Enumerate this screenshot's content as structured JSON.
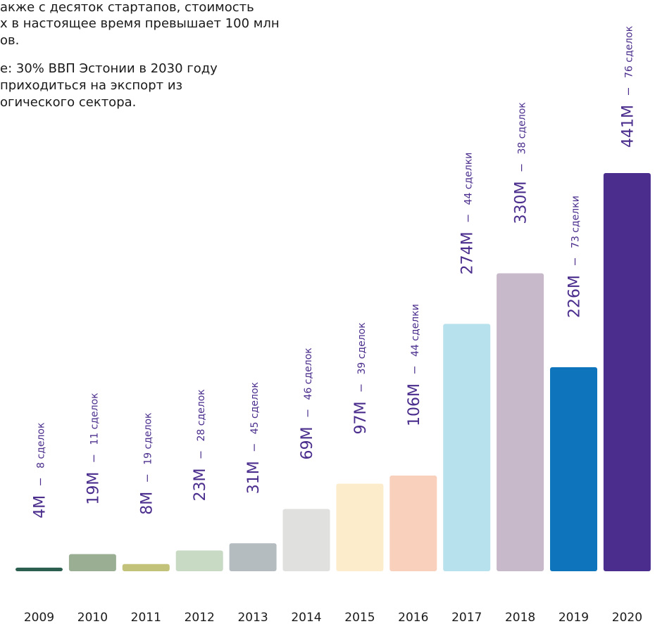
{
  "intro": [
    "акже с десяток стартапов, стоимость",
    "х в настоящее время превышает 100 млн",
    "ов.",
    "е: 30% ВВП Эстонии в 2030 году",
    "приходиться на экспорт из",
    "огического сектора."
  ],
  "chart_data": {
    "type": "bar",
    "categories": [
      "2009",
      "2010",
      "2011",
      "2012",
      "2013",
      "2014",
      "2015",
      "2016",
      "2017",
      "2018",
      "2019",
      "2020"
    ],
    "values": [
      4,
      19,
      8,
      23,
      31,
      69,
      97,
      106,
      274,
      330,
      226,
      441
    ],
    "value_labels": [
      "4M",
      "19M",
      "8M",
      "23M",
      "31M",
      "69M",
      "97M",
      "106M",
      "274M",
      "330M",
      "226M",
      "441M"
    ],
    "deal_labels": [
      "8 сделок",
      "11 сделок",
      "19 сделок",
      "28 сделок",
      "45 сделок",
      "46 сделок",
      "39 сделок",
      "44 сделки",
      "44 сделки",
      "38 сделок",
      "73 сделки",
      "76 сделок"
    ],
    "colors": [
      "#2b5e4e",
      "#9aae94",
      "#c2c27a",
      "#c8d9c4",
      "#b4bcc0",
      "#e0e0de",
      "#fdeccc",
      "#f9d0bb",
      "#b7e1ec",
      "#c8b9ca",
      "#0e74bc",
      "#4a2d8c"
    ],
    "ylim": [
      0,
      441
    ]
  }
}
